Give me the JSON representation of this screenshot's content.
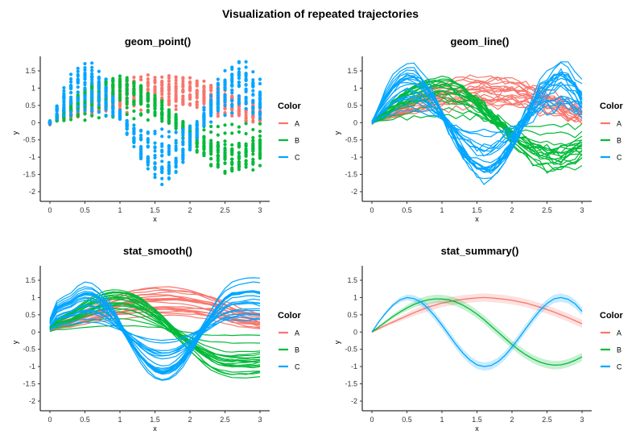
{
  "figure": {
    "title": "Visualization of repeated trajectories"
  },
  "legend": {
    "title": "Color",
    "labels": [
      "A",
      "B",
      "C"
    ],
    "colors": [
      "#F8766D",
      "#00BA38",
      "#00A5FF"
    ]
  },
  "panels": [
    {
      "title": "geom_point()",
      "xlabel": "x",
      "ylabel": "y"
    },
    {
      "title": "geom_line()",
      "xlabel": "x",
      "ylabel": "y"
    },
    {
      "title": "stat_smooth()",
      "xlabel": "x",
      "ylabel": "y"
    },
    {
      "title": "stat_summary()",
      "xlabel": "x",
      "ylabel": "y"
    }
  ],
  "chart_data": [
    {
      "type": "scatter",
      "title": "geom_point()",
      "xlabel": "x",
      "ylabel": "y",
      "xlim": [
        0,
        3
      ],
      "ylim": [
        -2,
        1.5
      ],
      "x_ticks": [
        0,
        0.5,
        1,
        1.5,
        2,
        2.5,
        3
      ],
      "y_ticks": [
        -2,
        -1.5,
        -1,
        -0.5,
        0,
        0.5,
        1,
        1.5
      ],
      "x": [
        0,
        0.1,
        0.2,
        0.3,
        0.4,
        0.5,
        0.6,
        0.7,
        0.8,
        0.9,
        1.0,
        1.1,
        1.2,
        1.3,
        1.4,
        1.5,
        1.6,
        1.7,
        1.8,
        1.9,
        2.0,
        2.1,
        2.2,
        2.3,
        2.4,
        2.5,
        2.6,
        2.7,
        2.8,
        2.9,
        3.0
      ],
      "series": [
        {
          "name": "A",
          "mean": [
            0.0,
            0.1,
            0.2,
            0.29,
            0.38,
            0.47,
            0.56,
            0.64,
            0.72,
            0.78,
            0.84,
            0.88,
            0.92,
            0.95,
            0.97,
            0.99,
            1.0,
            0.99,
            0.97,
            0.95,
            0.92,
            0.88,
            0.84,
            0.78,
            0.72,
            0.65,
            0.58,
            0.5,
            0.42,
            0.33,
            0.24
          ],
          "spread": [
            0.1,
            0.12,
            0.14,
            0.16,
            0.18,
            0.2,
            0.22,
            0.24,
            0.26,
            0.28,
            0.3,
            0.31,
            0.32,
            0.33,
            0.34,
            0.35,
            0.36,
            0.37,
            0.38,
            0.39,
            0.4,
            0.41,
            0.42,
            0.43,
            0.44,
            0.45,
            0.46,
            0.47,
            0.48,
            0.49,
            0.5
          ]
        },
        {
          "name": "B",
          "mean": [
            0.0,
            0.15,
            0.3,
            0.45,
            0.58,
            0.7,
            0.8,
            0.88,
            0.93,
            0.96,
            0.96,
            0.93,
            0.87,
            0.78,
            0.66,
            0.52,
            0.36,
            0.18,
            0.0,
            -0.18,
            -0.36,
            -0.52,
            -0.66,
            -0.78,
            -0.87,
            -0.93,
            -0.96,
            -0.95,
            -0.9,
            -0.82,
            -0.72
          ],
          "spread": [
            0.1,
            0.12,
            0.14,
            0.16,
            0.18,
            0.2,
            0.22,
            0.24,
            0.26,
            0.28,
            0.3,
            0.31,
            0.32,
            0.33,
            0.34,
            0.35,
            0.36,
            0.37,
            0.38,
            0.39,
            0.4,
            0.41,
            0.42,
            0.43,
            0.44,
            0.45,
            0.46,
            0.47,
            0.48,
            0.49,
            0.5
          ]
        },
        {
          "name": "C",
          "mean": [
            0.0,
            0.3,
            0.56,
            0.78,
            0.93,
            1.0,
            0.97,
            0.87,
            0.69,
            0.46,
            0.2,
            -0.08,
            -0.36,
            -0.61,
            -0.81,
            -0.95,
            -1.0,
            -0.97,
            -0.86,
            -0.68,
            -0.44,
            -0.17,
            0.11,
            0.38,
            0.63,
            0.83,
            0.96,
            1.0,
            0.95,
            0.82,
            0.6
          ],
          "spread": [
            0.1,
            0.12,
            0.14,
            0.16,
            0.18,
            0.2,
            0.22,
            0.24,
            0.26,
            0.28,
            0.3,
            0.31,
            0.32,
            0.33,
            0.34,
            0.35,
            0.36,
            0.37,
            0.38,
            0.39,
            0.4,
            0.41,
            0.42,
            0.43,
            0.44,
            0.45,
            0.46,
            0.47,
            0.48,
            0.49,
            0.5
          ]
        }
      ],
      "trajectories_per_group": 20,
      "legend_title": "Color"
    },
    {
      "type": "line",
      "title": "geom_line()",
      "xlabel": "x",
      "ylabel": "y",
      "xlim": [
        0,
        3
      ],
      "ylim": [
        -2,
        1.5
      ],
      "x_ticks": [
        0,
        0.5,
        1,
        1.5,
        2,
        2.5,
        3
      ],
      "y_ticks": [
        -2,
        -1.5,
        -1,
        -0.5,
        0,
        0.5,
        1,
        1.5
      ],
      "series": [
        "A",
        "B",
        "C"
      ],
      "trajectories_per_group": 20,
      "note": "same repeated trajectories as geom_point(), drawn as lines",
      "legend_title": "Color"
    },
    {
      "type": "line",
      "title": "stat_smooth()",
      "xlabel": "x",
      "ylabel": "y",
      "xlim": [
        0,
        3
      ],
      "ylim": [
        -2,
        1.5
      ],
      "x_ticks": [
        0,
        0.5,
        1,
        1.5,
        2,
        2.5,
        3
      ],
      "y_ticks": [
        -2,
        -1.5,
        -1,
        -0.5,
        0,
        0.5,
        1,
        1.5
      ],
      "series": [
        "A",
        "B",
        "C"
      ],
      "trajectories_per_group": 20,
      "smoothed": true,
      "legend_title": "Color"
    },
    {
      "type": "line",
      "title": "stat_summary()",
      "xlabel": "x",
      "ylabel": "y",
      "xlim": [
        0,
        3
      ],
      "ylim": [
        -2,
        1.5
      ],
      "x_ticks": [
        0,
        0.5,
        1,
        1.5,
        2,
        2.5,
        3
      ],
      "y_ticks": [
        -2,
        -1.5,
        -1,
        -0.5,
        0,
        0.5,
        1,
        1.5
      ],
      "x": [
        0,
        0.1,
        0.2,
        0.3,
        0.4,
        0.5,
        0.6,
        0.7,
        0.8,
        0.9,
        1.0,
        1.1,
        1.2,
        1.3,
        1.4,
        1.5,
        1.6,
        1.7,
        1.8,
        1.9,
        2.0,
        2.1,
        2.2,
        2.3,
        2.4,
        2.5,
        2.6,
        2.7,
        2.8,
        2.9,
        3.0
      ],
      "series": [
        {
          "name": "A",
          "mean": [
            0.0,
            0.1,
            0.2,
            0.29,
            0.38,
            0.47,
            0.56,
            0.64,
            0.72,
            0.78,
            0.84,
            0.88,
            0.92,
            0.95,
            0.97,
            0.99,
            1.0,
            0.99,
            0.97,
            0.95,
            0.92,
            0.88,
            0.84,
            0.78,
            0.72,
            0.65,
            0.58,
            0.5,
            0.42,
            0.33,
            0.24
          ],
          "ribbon_halfwidth": 0.12
        },
        {
          "name": "B",
          "mean": [
            0.0,
            0.15,
            0.3,
            0.45,
            0.58,
            0.7,
            0.8,
            0.88,
            0.93,
            0.96,
            0.96,
            0.93,
            0.87,
            0.78,
            0.66,
            0.52,
            0.36,
            0.18,
            0.0,
            -0.18,
            -0.36,
            -0.52,
            -0.66,
            -0.78,
            -0.87,
            -0.93,
            -0.96,
            -0.95,
            -0.9,
            -0.82,
            -0.72
          ],
          "ribbon_halfwidth": 0.12
        },
        {
          "name": "C",
          "mean": [
            0.0,
            0.3,
            0.56,
            0.78,
            0.93,
            1.0,
            0.97,
            0.87,
            0.69,
            0.46,
            0.2,
            -0.08,
            -0.36,
            -0.61,
            -0.81,
            -0.95,
            -1.0,
            -0.97,
            -0.86,
            -0.68,
            -0.44,
            -0.17,
            0.11,
            0.38,
            0.63,
            0.83,
            0.96,
            1.0,
            0.95,
            0.82,
            0.6
          ],
          "ribbon_halfwidth": 0.12
        }
      ],
      "legend_title": "Color"
    }
  ]
}
